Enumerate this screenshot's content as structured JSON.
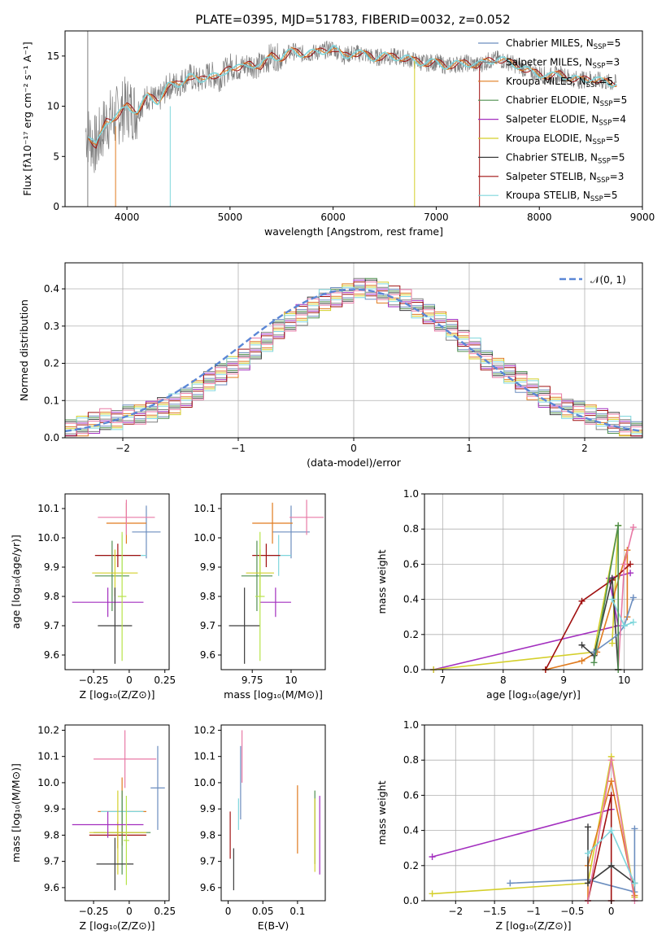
{
  "figure_title": "PLATE=0395, MJD=51783, FIBERID=0032, z=0.052",
  "colors": {
    "Chabrier MILES": "#6c8ebf",
    "Salpeter MILES": "#7f7f7f",
    "Kroupa MILES": "#e07b1f",
    "Chabrier ELODIE": "#4f8f4f",
    "Salpeter ELODIE": "#a32fbf",
    "Kroupa ELODIE": "#d4cf2a",
    "Chabrier STELIB": "#3c3c3c",
    "Salpeter STELIB": "#a01010",
    "Kroupa STELIB": "#7fd6dc",
    "pink": "#e87aa6",
    "lime": "#b7e34a",
    "normal": "#5b87d6"
  },
  "chart_data": [
    {
      "id": "spectrum",
      "type": "line",
      "xlabel": "wavelength [Angstrom, rest frame]",
      "ylabel": "Flux [fλ10⁻¹⁷ erg cm⁻² s⁻¹ A⁻¹]",
      "xlim": [
        3400,
        9000
      ],
      "ylim": [
        0,
        17.5
      ],
      "xticks": [
        4000,
        5000,
        6000,
        7000,
        8000,
        9000
      ],
      "yticks": [
        0,
        5,
        10,
        15
      ],
      "data_x": [
        3600,
        3700,
        3800,
        3900,
        4000,
        4100,
        4200,
        4300,
        4400,
        4500,
        4600,
        4700,
        4800,
        4900,
        5000,
        5100,
        5200,
        5300,
        5400,
        5500,
        5600,
        5700,
        5800,
        5900,
        6000,
        6100,
        6200,
        6300,
        6400,
        6500,
        6600,
        6700,
        6800,
        6900,
        7000,
        7100,
        7200,
        7300,
        7400,
        7500,
        7600,
        7700,
        7800,
        7900,
        8000,
        8100,
        8200,
        8300,
        8400,
        8500,
        8600,
        8700
      ],
      "data_y": [
        7.5,
        6.0,
        8.5,
        9.0,
        10.0,
        9.5,
        11.0,
        10.5,
        12.0,
        12.2,
        13.0,
        12.5,
        13.2,
        12.8,
        14.0,
        13.8,
        14.2,
        14.0,
        15.0,
        14.8,
        15.5,
        15.2,
        15.3,
        15.5,
        15.8,
        15.0,
        15.3,
        15.2,
        14.8,
        15.0,
        14.9,
        14.8,
        14.5,
        14.3,
        14.4,
        14.0,
        14.2,
        14.3,
        14.1,
        14.5,
        14.7,
        14.4,
        14.0,
        13.5,
        13.2,
        13.0,
        13.2,
        12.8,
        12.6,
        12.8,
        12.5,
        12.3
      ],
      "legend": [
        "Chabrier MILES, N_SSP=5",
        "Salpeter MILES, N_SSP=3",
        "Kroupa MILES, N_SSP=5",
        "Chabrier ELODIE, N_SSP=5",
        "Salpeter ELODIE, N_SSP=4",
        "Kroupa ELODIE, N_SSP=5",
        "Chabrier STELIB, N_SSP=5",
        "Salpeter STELIB, N_SSP=3",
        "Kroupa STELIB, N_SSP=5"
      ]
    },
    {
      "id": "residual-histogram",
      "type": "line",
      "xlabel": "(data-model)/error",
      "ylabel": "Normed distribution",
      "xlim": [
        -2.5,
        2.5
      ],
      "ylim": [
        0,
        0.47
      ],
      "xticks": [
        -2,
        -1,
        0,
        1,
        2
      ],
      "yticks": [
        0.0,
        0.1,
        0.2,
        0.3,
        0.4
      ],
      "bin_width": 0.1,
      "bin_start": -2.5,
      "hist_mean": [
        0.02,
        0.03,
        0.04,
        0.05,
        0.05,
        0.06,
        0.06,
        0.07,
        0.08,
        0.09,
        0.11,
        0.13,
        0.15,
        0.17,
        0.19,
        0.21,
        0.24,
        0.26,
        0.29,
        0.31,
        0.33,
        0.35,
        0.37,
        0.38,
        0.39,
        0.4,
        0.4,
        0.39,
        0.38,
        0.37,
        0.35,
        0.33,
        0.31,
        0.29,
        0.26,
        0.24,
        0.21,
        0.19,
        0.17,
        0.15,
        0.13,
        0.11,
        0.09,
        0.08,
        0.07,
        0.06,
        0.05,
        0.04,
        0.03,
        0.02
      ],
      "normal_label": "𝒩(0, 1)"
    },
    {
      "id": "age-vs-Z",
      "type": "scatter",
      "xlabel": "Z [log₁₀(Z/Z⊙)]",
      "ylabel": "age  [log₁₀(age/yr)]",
      "xlim": [
        -0.45,
        0.28
      ],
      "ylim": [
        9.55,
        10.15
      ],
      "xticks": [
        -0.25,
        0.0,
        0.25
      ],
      "yticks": [
        9.6,
        9.7,
        9.8,
        9.9,
        10.0,
        10.1
      ],
      "points": [
        {
          "x": 0.12,
          "y": 10.02,
          "xerr": 0.1,
          "yerr": 0.09,
          "c": "Chabrier MILES"
        },
        {
          "x": -0.02,
          "y": 10.05,
          "xerr": 0.14,
          "yerr": 0.07,
          "c": "Kroupa MILES"
        },
        {
          "x": -0.02,
          "y": 10.07,
          "xerr": 0.2,
          "yerr": 0.06,
          "c": "pink"
        },
        {
          "x": -0.05,
          "y": 9.94,
          "xerr": 0.17,
          "yerr": 0.07,
          "c": "Kroupa STELIB"
        },
        {
          "x": -0.08,
          "y": 9.94,
          "xerr": 0.16,
          "yerr": 0.04,
          "c": "Salpeter STELIB"
        },
        {
          "x": -0.12,
          "y": 9.87,
          "xerr": 0.12,
          "yerr": 0.12,
          "c": "Chabrier ELODIE"
        },
        {
          "x": -0.1,
          "y": 9.88,
          "xerr": 0.16,
          "yerr": 0.08,
          "c": "Kroupa ELODIE"
        },
        {
          "x": -0.15,
          "y": 9.78,
          "xerr": 0.25,
          "yerr": 0.05,
          "c": "Salpeter ELODIE"
        },
        {
          "x": -0.1,
          "y": 9.7,
          "xerr": 0.12,
          "yerr": 0.13,
          "c": "Chabrier STELIB"
        },
        {
          "x": -0.05,
          "y": 9.8,
          "xerr": 0.03,
          "yerr": 0.22,
          "c": "lime"
        }
      ]
    },
    {
      "id": "age-vs-mass",
      "type": "scatter",
      "xlabel": "mass [log₁₀(M/M⊙)]",
      "ylabel": "",
      "xlim": [
        9.55,
        10.22
      ],
      "ylim": [
        9.55,
        10.15
      ],
      "xticks": [
        9.75,
        10.0
      ],
      "yticks": [
        9.6,
        9.7,
        9.8,
        9.9,
        10.0,
        10.1
      ],
      "points": [
        {
          "x": 10.0,
          "y": 10.02,
          "xerr": 0.12,
          "yerr": 0.09,
          "c": "Chabrier MILES"
        },
        {
          "x": 9.88,
          "y": 10.05,
          "xerr": 0.13,
          "yerr": 0.07,
          "c": "Kroupa MILES"
        },
        {
          "x": 10.1,
          "y": 10.07,
          "xerr": 0.11,
          "yerr": 0.06,
          "c": "pink"
        },
        {
          "x": 9.92,
          "y": 9.94,
          "xerr": 0.08,
          "yerr": 0.07,
          "c": "Kroupa STELIB"
        },
        {
          "x": 9.84,
          "y": 9.94,
          "xerr": 0.09,
          "yerr": 0.04,
          "c": "Salpeter STELIB"
        },
        {
          "x": 9.78,
          "y": 9.87,
          "xerr": 0.1,
          "yerr": 0.12,
          "c": "Chabrier ELODIE"
        },
        {
          "x": 9.8,
          "y": 9.88,
          "xerr": 0.09,
          "yerr": 0.08,
          "c": "Kroupa ELODIE"
        },
        {
          "x": 9.9,
          "y": 9.78,
          "xerr": 0.1,
          "yerr": 0.05,
          "c": "Salpeter ELODIE"
        },
        {
          "x": 9.7,
          "y": 9.7,
          "xerr": 0.1,
          "yerr": 0.13,
          "c": "Chabrier STELIB"
        },
        {
          "x": 9.8,
          "y": 9.8,
          "xerr": 0.03,
          "yerr": 0.22,
          "c": "lime"
        }
      ]
    },
    {
      "id": "weight-vs-age",
      "type": "line",
      "xlabel": "age  [log₁₀(age/yr)]",
      "ylabel": "mass weight",
      "xlim": [
        6.7,
        10.3
      ],
      "ylim": [
        0,
        1.0
      ],
      "xticks": [
        7,
        8,
        9,
        10
      ],
      "yticks": [
        0.0,
        0.2,
        0.4,
        0.6,
        0.8,
        1.0
      ],
      "series": [
        {
          "c": "Salpeter ELODIE",
          "x": [
            6.85,
            9.9,
            9.75,
            10.1
          ],
          "y": [
            0.0,
            0.25,
            0.52,
            0.55
          ]
        },
        {
          "c": "Kroupa ELODIE",
          "x": [
            6.85,
            9.5,
            9.9,
            9.8
          ],
          "y": [
            0.0,
            0.1,
            0.82,
            0.15
          ]
        },
        {
          "c": "Kroupa MILES",
          "x": [
            8.7,
            9.3,
            9.55,
            10.05,
            10.05
          ],
          "y": [
            0.0,
            0.05,
            0.1,
            0.68,
            0.3
          ]
        },
        {
          "c": "Salpeter STELIB",
          "x": [
            8.7,
            9.3,
            9.8,
            10.1
          ],
          "y": [
            0.0,
            0.39,
            0.51,
            0.6
          ]
        },
        {
          "c": "Chabrier STELIB",
          "x": [
            9.3,
            9.5,
            9.8,
            9.9
          ],
          "y": [
            0.14,
            0.08,
            0.52,
            0.0
          ]
        },
        {
          "c": "Chabrier MILES",
          "x": [
            9.5,
            9.9,
            10.0,
            10.15
          ],
          "y": [
            0.1,
            0.2,
            0.25,
            0.41
          ]
        },
        {
          "c": "pink",
          "x": [
            9.9,
            10.0,
            10.15
          ],
          "y": [
            0.0,
            0.6,
            0.81
          ]
        },
        {
          "c": "Kroupa STELIB",
          "x": [
            9.8,
            10.0,
            10.15
          ],
          "y": [
            0.4,
            0.25,
            0.27
          ]
        },
        {
          "c": "Chabrier ELODIE",
          "x": [
            9.5,
            9.9,
            9.9
          ],
          "y": [
            0.04,
            0.82,
            0.0
          ]
        }
      ]
    },
    {
      "id": "mass-vs-Z",
      "type": "scatter",
      "xlabel": "Z [log₁₀(Z/Z⊙)]",
      "ylabel": "mass [log₁₀(M/M⊙)]",
      "xlim": [
        -0.45,
        0.28
      ],
      "ylim": [
        9.55,
        10.22
      ],
      "xticks": [
        -0.25,
        0.0,
        0.25
      ],
      "yticks": [
        9.6,
        9.7,
        9.8,
        9.9,
        10.0,
        10.1,
        10.2
      ],
      "points": [
        {
          "x": 0.2,
          "y": 9.98,
          "xerr": 0.05,
          "yerr": 0.16,
          "c": "Chabrier MILES"
        },
        {
          "x": -0.05,
          "y": 9.89,
          "xerr": 0.17,
          "yerr": 0.13,
          "c": "Kroupa MILES"
        },
        {
          "x": -0.03,
          "y": 10.09,
          "xerr": 0.22,
          "yerr": 0.11,
          "c": "pink"
        },
        {
          "x": -0.05,
          "y": 9.89,
          "xerr": 0.15,
          "yerr": 0.05,
          "c": "Kroupa STELIB"
        },
        {
          "x": -0.08,
          "y": 9.8,
          "xerr": 0.2,
          "yerr": 0.05,
          "c": "Salpeter STELIB"
        },
        {
          "x": -0.05,
          "y": 9.81,
          "xerr": 0.2,
          "yerr": 0.16,
          "c": "Chabrier ELODIE"
        },
        {
          "x": -0.08,
          "y": 9.81,
          "xerr": 0.2,
          "yerr": 0.16,
          "c": "Kroupa ELODIE"
        },
        {
          "x": -0.15,
          "y": 9.84,
          "xerr": 0.25,
          "yerr": 0.05,
          "c": "Salpeter ELODIE"
        },
        {
          "x": -0.1,
          "y": 9.69,
          "xerr": 0.13,
          "yerr": 0.1,
          "c": "Chabrier STELIB"
        },
        {
          "x": -0.02,
          "y": 9.78,
          "xerr": 0.02,
          "yerr": 0.17,
          "c": "lime"
        }
      ]
    },
    {
      "id": "mass-vs-EBV",
      "type": "scatter",
      "xlabel": "E(B-V)",
      "ylabel": "",
      "xlim": [
        -0.01,
        0.14
      ],
      "ylim": [
        9.55,
        10.22
      ],
      "xticks": [
        0.0,
        0.05,
        0.1
      ],
      "yticks": [
        9.6,
        9.7,
        9.8,
        9.9,
        10.0,
        10.1,
        10.2
      ],
      "points": [
        {
          "x": 0.018,
          "y": 10.0,
          "xerr": 0,
          "yerr": 0.14,
          "c": "Chabrier MILES"
        },
        {
          "x": 0.1,
          "y": 9.86,
          "xerr": 0,
          "yerr": 0.13,
          "c": "Kroupa MILES"
        },
        {
          "x": 0.02,
          "y": 10.1,
          "xerr": 0,
          "yerr": 0.1,
          "c": "pink"
        },
        {
          "x": 0.015,
          "y": 9.88,
          "xerr": 0,
          "yerr": 0.06,
          "c": "Kroupa STELIB"
        },
        {
          "x": 0.003,
          "y": 9.8,
          "xerr": 0,
          "yerr": 0.09,
          "c": "Salpeter STELIB"
        },
        {
          "x": 0.125,
          "y": 9.83,
          "xerr": 0,
          "yerr": 0.14,
          "c": "Chabrier ELODIE"
        },
        {
          "x": 0.125,
          "y": 9.8,
          "xerr": 0,
          "yerr": 0.14,
          "c": "Kroupa ELODIE"
        },
        {
          "x": 0.132,
          "y": 9.8,
          "xerr": 0,
          "yerr": 0.15,
          "c": "Salpeter ELODIE"
        },
        {
          "x": 0.008,
          "y": 9.67,
          "xerr": 0,
          "yerr": 0.08,
          "c": "Chabrier STELIB"
        }
      ]
    },
    {
      "id": "weight-vs-Z",
      "type": "line",
      "xlabel": "Z [log₁₀(Z/Z⊙)]",
      "ylabel": "mass weight",
      "xlim": [
        -2.4,
        0.4
      ],
      "ylim": [
        0,
        1.0
      ],
      "xticks": [
        -2.0,
        -1.5,
        -1.0,
        -0.5,
        0.0
      ],
      "yticks": [
        0.0,
        0.2,
        0.4,
        0.6,
        0.8,
        1.0
      ],
      "series": [
        {
          "c": "Salpeter ELODIE",
          "x": [
            -2.3,
            0.0
          ],
          "y": [
            0.25,
            0.52
          ]
        },
        {
          "c": "Kroupa ELODIE",
          "x": [
            -2.3,
            -0.3,
            0.0,
            0.3
          ],
          "y": [
            0.04,
            0.1,
            0.82,
            0.02
          ]
        },
        {
          "c": "Chabrier MILES",
          "x": [
            -1.3,
            -0.3,
            0.3,
            0.3
          ],
          "y": [
            0.1,
            0.12,
            0.05,
            0.41
          ]
        },
        {
          "c": "Kroupa MILES",
          "x": [
            -0.3,
            -0.3,
            0.0,
            0.3
          ],
          "y": [
            0.0,
            0.2,
            0.68,
            0.03
          ]
        },
        {
          "c": "Salpeter STELIB",
          "x": [
            -0.3,
            0.0,
            0.0
          ],
          "y": [
            0.0,
            0.6,
            0.0
          ]
        },
        {
          "c": "Chabrier STELIB",
          "x": [
            -0.3,
            -0.3,
            0.0,
            0.3
          ],
          "y": [
            0.42,
            0.1,
            0.2,
            0.1
          ]
        },
        {
          "c": "pink",
          "x": [
            -0.3,
            0.0,
            0.3
          ],
          "y": [
            0.0,
            0.8,
            0.0
          ]
        },
        {
          "c": "Kroupa STELIB",
          "x": [
            -0.3,
            0.0,
            0.3
          ],
          "y": [
            0.27,
            0.4,
            0.1
          ]
        }
      ]
    }
  ]
}
